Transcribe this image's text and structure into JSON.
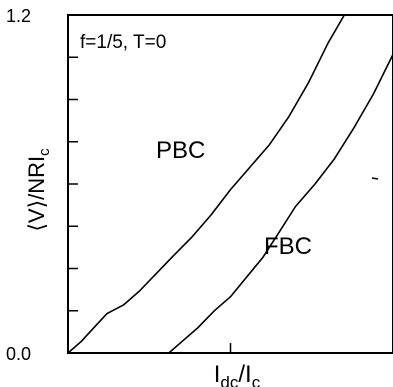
{
  "chart_data": {
    "type": "line",
    "annotation": "f=1/5, T=0",
    "ylabel": "⟨V⟩/NRI",
    "ylabel_sub": "c",
    "xlabel_main": "I",
    "xlabel_sub1": "dc",
    "xlabel_sep": "/I",
    "xlabel_sub2": "c",
    "y_tick_labels": [
      "0.0",
      "1.2"
    ],
    "ylim": [
      0,
      1.2
    ],
    "xlim": [
      0,
      1
    ],
    "y_minor_ticks": [
      0.15,
      0.3,
      0.45,
      0.6,
      0.75,
      0.9,
      1.05
    ],
    "x_ticks": [
      0.5
    ],
    "grid": false,
    "legend": "none",
    "series": [
      {
        "name": "PBC",
        "x": [
          0.0,
          0.04,
          0.08,
          0.12,
          0.17,
          0.22,
          0.27,
          0.32,
          0.38,
          0.44,
          0.5,
          0.56,
          0.62,
          0.68,
          0.74,
          0.8,
          0.85
        ],
        "y": [
          0.0,
          0.04,
          0.09,
          0.14,
          0.17,
          0.22,
          0.28,
          0.34,
          0.41,
          0.49,
          0.58,
          0.66,
          0.74,
          0.84,
          0.96,
          1.1,
          1.2
        ]
      },
      {
        "name": "FBC",
        "x": [
          0.31,
          0.35,
          0.4,
          0.45,
          0.5,
          0.55,
          0.6,
          0.65,
          0.7,
          0.76,
          0.82,
          0.88,
          0.94,
          1.0
        ],
        "y": [
          0.0,
          0.04,
          0.09,
          0.15,
          0.2,
          0.27,
          0.34,
          0.43,
          0.52,
          0.6,
          0.69,
          0.8,
          0.92,
          1.06
        ]
      }
    ]
  }
}
